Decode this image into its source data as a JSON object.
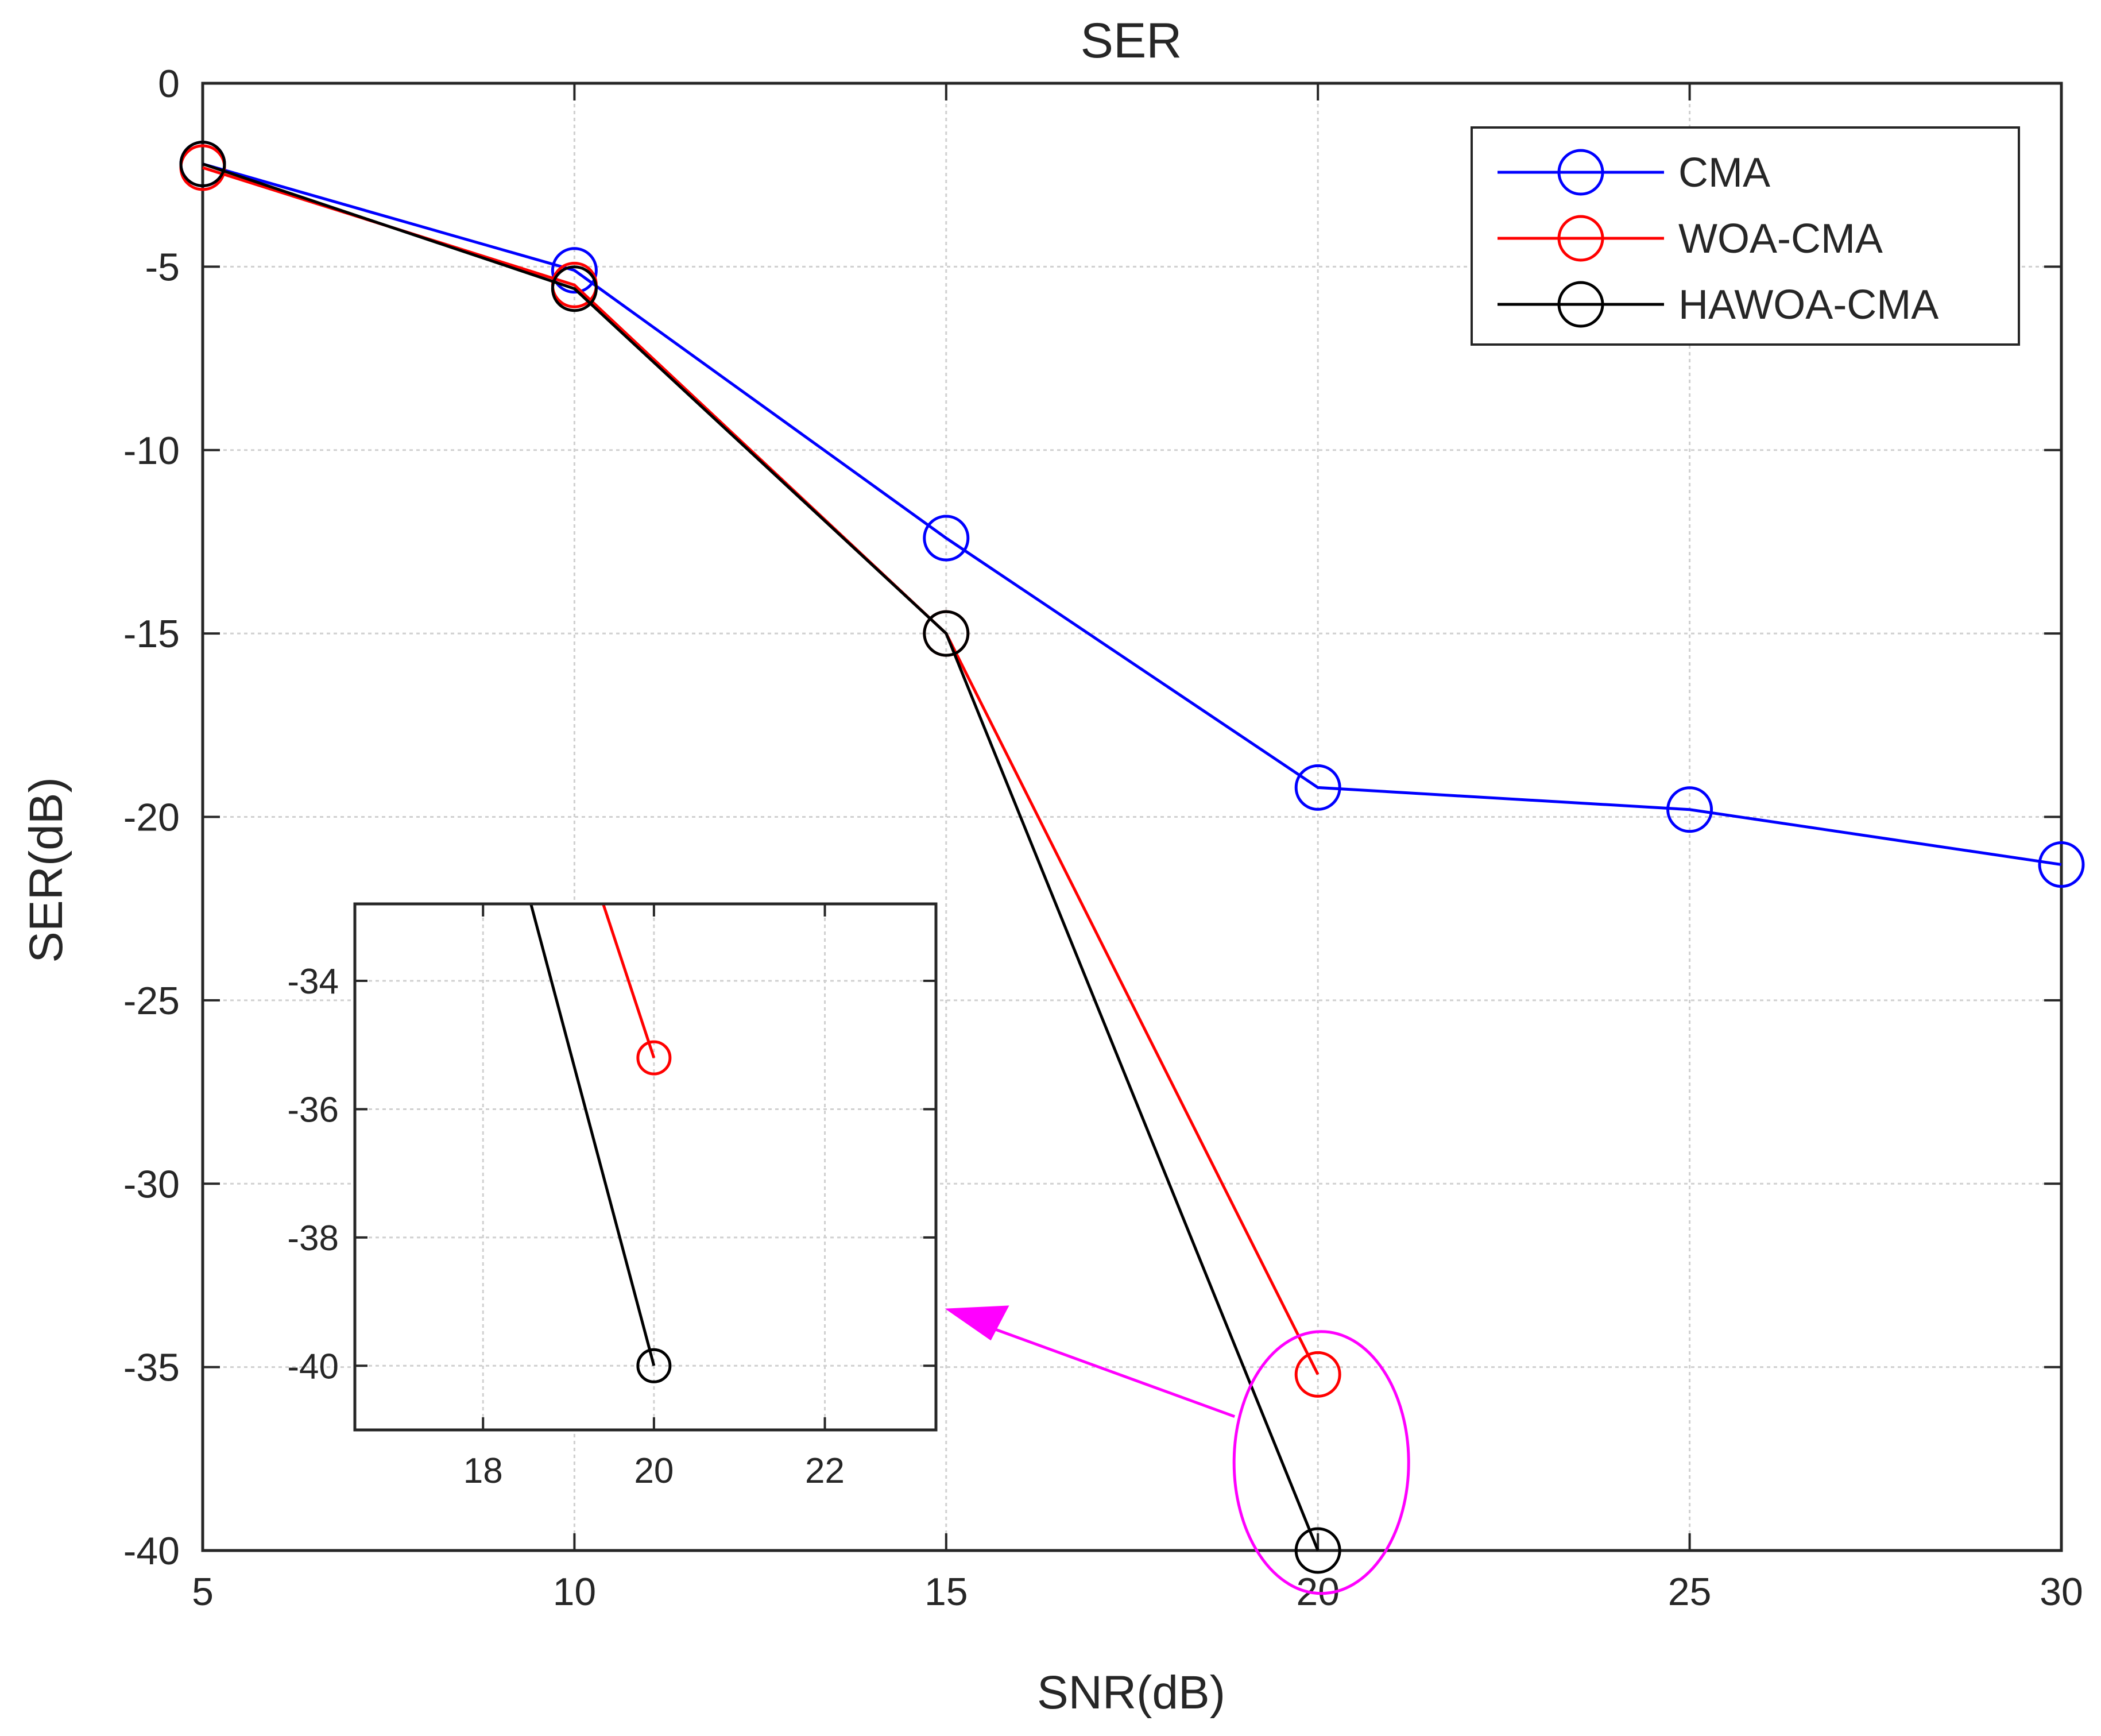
{
  "chart_data": {
    "type": "line",
    "title": "SER",
    "xlabel": "SNR(dB)",
    "ylabel": "SER(dB)",
    "xlim": [
      5,
      30
    ],
    "ylim": [
      -40,
      0
    ],
    "xticks": [
      5,
      10,
      15,
      20,
      25,
      30
    ],
    "yticks": [
      0,
      -5,
      -10,
      -15,
      -20,
      -25,
      -30,
      -35,
      -40
    ],
    "grid": true,
    "legend_position": "top-right",
    "series": [
      {
        "name": "CMA",
        "color": "#0000ff",
        "marker": "circle",
        "x": [
          5,
          10,
          15,
          20,
          25,
          30
        ],
        "y": [
          -2.2,
          -5.1,
          -12.4,
          -19.2,
          -19.8,
          -21.3
        ]
      },
      {
        "name": "WOA-CMA",
        "color": "#ff0000",
        "marker": "circle",
        "x": [
          5,
          10,
          15,
          20
        ],
        "y": [
          -2.3,
          -5.5,
          -15.0,
          -35.2
        ]
      },
      {
        "name": "HAWOA-CMA",
        "color": "#000000",
        "marker": "circle",
        "x": [
          5,
          10,
          15,
          20
        ],
        "y": [
          -2.2,
          -5.6,
          -15.0,
          -40.0
        ]
      }
    ],
    "inset": {
      "xlim": [
        16.5,
        23.3
      ],
      "ylim": [
        -41,
        -32.8
      ],
      "xticks": [
        18,
        20,
        22
      ],
      "yticks": [
        -34,
        -36,
        -38,
        -40
      ],
      "grid": true
    },
    "annotation": {
      "type": "zoom-highlight",
      "ellipse_color": "#ff00ff",
      "arrow_color": "#ff00ff",
      "target_x": 20
    }
  }
}
